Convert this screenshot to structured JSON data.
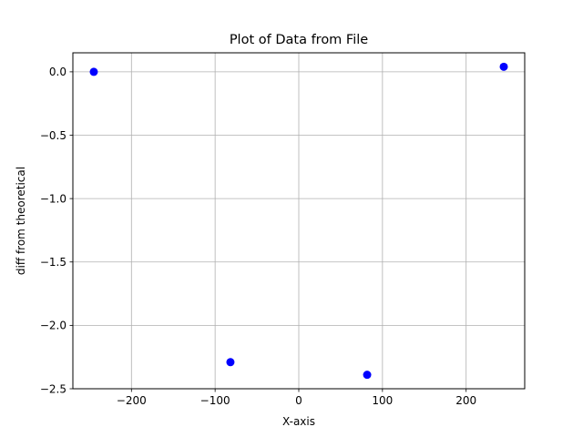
{
  "chart_data": {
    "type": "scatter",
    "title": "Plot of Data from File",
    "xlabel": "X-axis",
    "ylabel": "diff from theoretical",
    "xlim": [
      -270,
      270
    ],
    "ylim": [
      -2.5,
      0.15
    ],
    "x_ticks": [
      {
        "value": -200,
        "label": "−200"
      },
      {
        "value": -100,
        "label": "−100"
      },
      {
        "value": 0,
        "label": "0"
      },
      {
        "value": 100,
        "label": "100"
      },
      {
        "value": 200,
        "label": "200"
      }
    ],
    "y_ticks": [
      {
        "value": 0.0,
        "label": "0.0"
      },
      {
        "value": -0.5,
        "label": "−0.5"
      },
      {
        "value": -1.0,
        "label": "−1.0"
      },
      {
        "value": -1.5,
        "label": "−1.5"
      },
      {
        "value": -2.0,
        "label": "−2.0"
      },
      {
        "value": -2.5,
        "label": "−2.5"
      }
    ],
    "grid": true,
    "legend": "none",
    "series": [
      {
        "color": "#0000ff",
        "marker": "circle",
        "points": [
          {
            "x": -245,
            "y": 0.0
          },
          {
            "x": -81.7,
            "y": -2.29
          },
          {
            "x": 81.7,
            "y": -2.39
          },
          {
            "x": 245,
            "y": 0.04
          }
        ]
      }
    ]
  }
}
